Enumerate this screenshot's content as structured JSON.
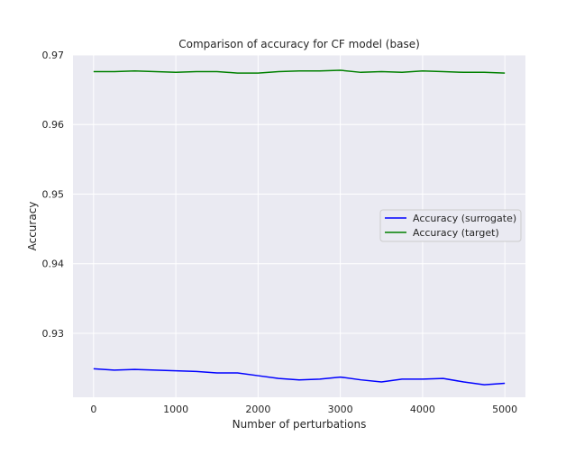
{
  "chart_data": {
    "type": "line",
    "title": "Comparison of accuracy for CF model (base)",
    "xlabel": "Number of perturbations",
    "ylabel": "Accuracy",
    "xlim": [
      -250,
      5250
    ],
    "ylim": [
      0.9208,
      0.97
    ],
    "xticks": [
      0,
      1000,
      2000,
      3000,
      4000,
      5000
    ],
    "yticks": [
      0.93,
      0.94,
      0.95,
      0.96,
      0.97
    ],
    "ytick_labels": [
      "0.93",
      "0.94",
      "0.95",
      "0.96",
      "0.97"
    ],
    "grid": true,
    "legend_position": "center-right",
    "series": [
      {
        "name": "Accuracy (surrogate)",
        "color": "#0000ff",
        "x": [
          0,
          250,
          500,
          750,
          1000,
          1250,
          1500,
          1750,
          2000,
          2250,
          2500,
          2750,
          3000,
          3250,
          3500,
          3750,
          4000,
          4250,
          4500,
          4750,
          5000
        ],
        "y": [
          0.9249,
          0.9247,
          0.9248,
          0.9247,
          0.9246,
          0.9245,
          0.9243,
          0.9243,
          0.9239,
          0.9235,
          0.9233,
          0.9234,
          0.9237,
          0.9233,
          0.923,
          0.9234,
          0.9234,
          0.9235,
          0.923,
          0.9226,
          0.9228
        ]
      },
      {
        "name": "Accuracy (target)",
        "color": "#008000",
        "x": [
          0,
          250,
          500,
          750,
          1000,
          1250,
          1500,
          1750,
          2000,
          2250,
          2500,
          2750,
          3000,
          3250,
          3500,
          3750,
          4000,
          4250,
          4500,
          4750,
          5000
        ],
        "y": [
          0.9676,
          0.9676,
          0.9677,
          0.9676,
          0.9675,
          0.9676,
          0.9676,
          0.9674,
          0.9674,
          0.9676,
          0.9677,
          0.9677,
          0.9678,
          0.9675,
          0.9676,
          0.9675,
          0.9677,
          0.9676,
          0.9675,
          0.9675,
          0.9674
        ]
      }
    ]
  }
}
